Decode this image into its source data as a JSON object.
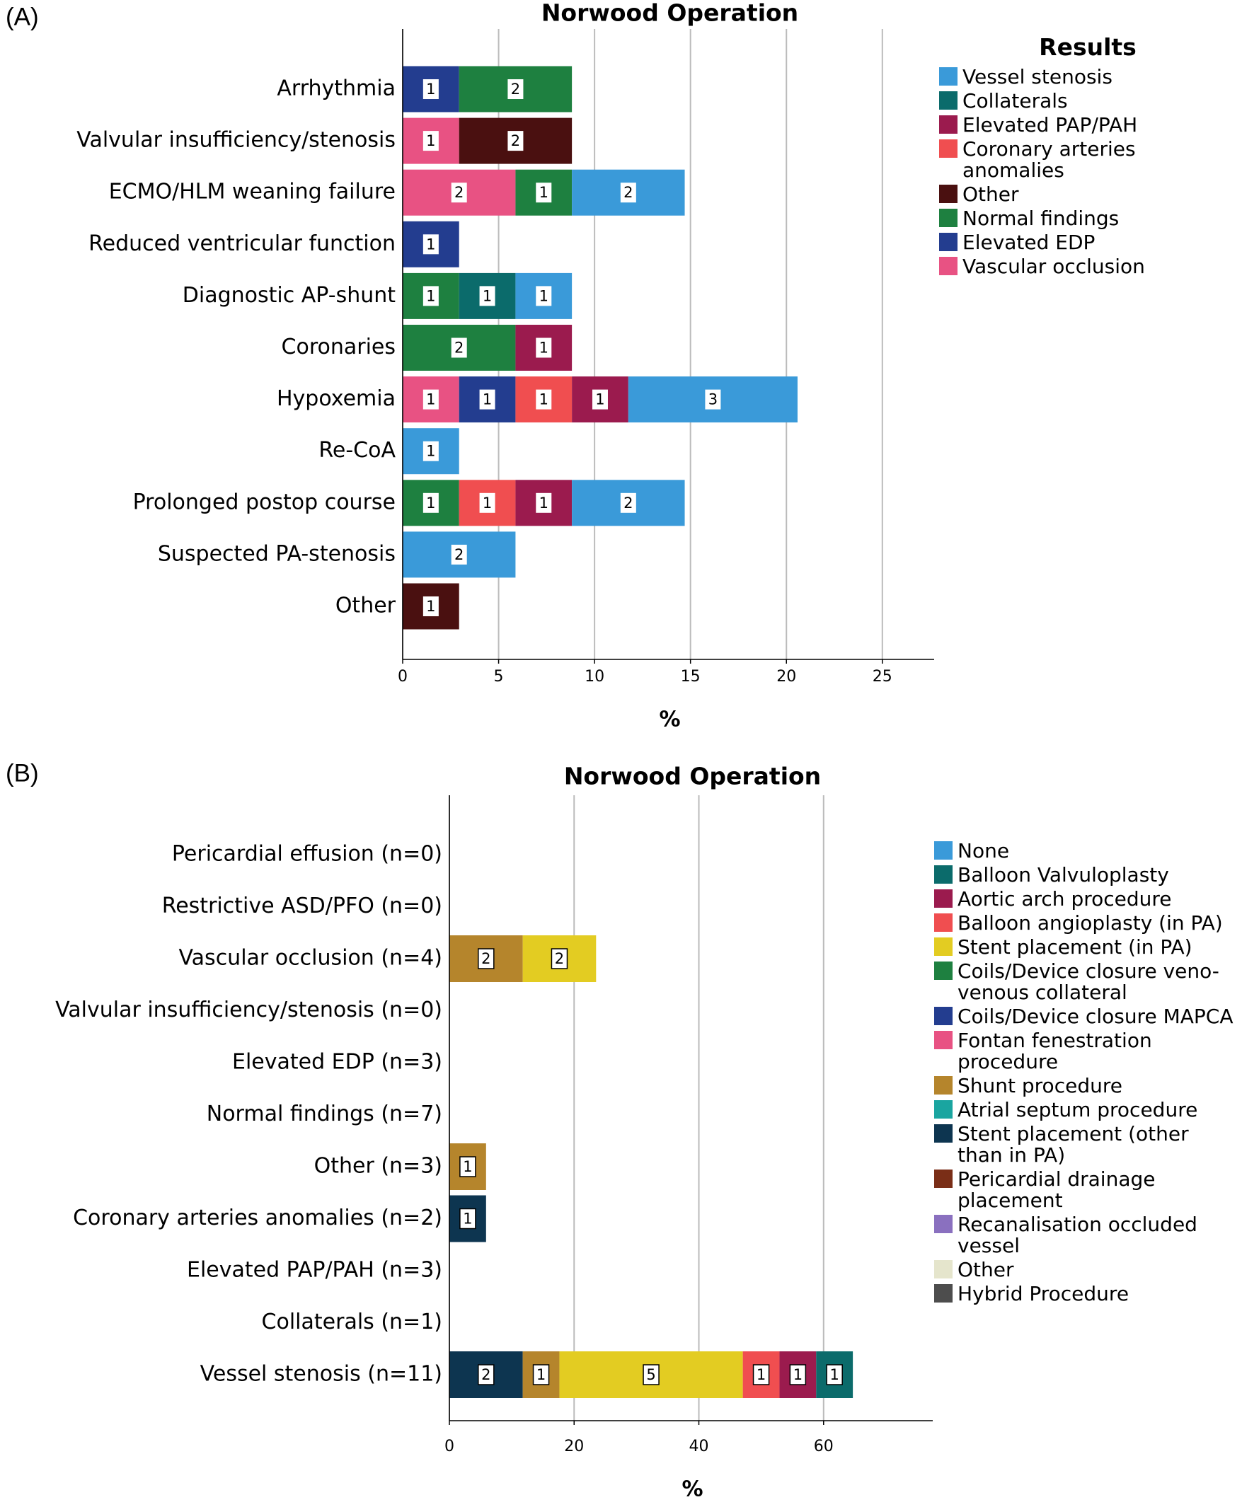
{
  "chart_data": [
    {
      "type": "bar",
      "orientation": "horizontal",
      "stacked": true,
      "panel_label": "(A)",
      "title": "Norwood Operation",
      "xlabel": "%",
      "legend_title": "Results",
      "legend_position": "right",
      "grid": true,
      "categories": [
        "Arrhythmia",
        "Valvular insufficiency/stenosis",
        "ECMO/HLM weaning failure",
        "Reduced ventricular function",
        "Diagnostic AP-shunt",
        "Coronaries",
        "Hypoxemia",
        "Re-CoA",
        "Prolonged postop course",
        "Suspected PA-stenosis",
        "Other"
      ],
      "xlim": [
        0,
        27.7
      ],
      "xticks": [
        0,
        5,
        10,
        15,
        20,
        25
      ],
      "series": [
        {
          "name": "Vessel stenosis",
          "color": "#3a9ad9",
          "values": [
            null,
            null,
            5.88,
            null,
            2.94,
            null,
            8.82,
            2.94,
            5.88,
            5.88,
            null
          ],
          "value_labels": [
            null,
            null,
            "2",
            null,
            "1",
            null,
            "3",
            "1",
            "2",
            "2",
            null
          ]
        },
        {
          "name": "Collaterals",
          "color": "#0b6b6b",
          "values": [
            null,
            null,
            null,
            null,
            2.94,
            null,
            null,
            null,
            null,
            null,
            null
          ],
          "value_labels": [
            null,
            null,
            null,
            null,
            "1",
            null,
            null,
            null,
            null,
            null,
            null
          ]
        },
        {
          "name": "Elevated PAP/PAH",
          "color": "#9b1b4e",
          "values": [
            null,
            null,
            null,
            null,
            null,
            2.94,
            2.94,
            null,
            2.94,
            null,
            null
          ],
          "value_labels": [
            null,
            null,
            null,
            null,
            null,
            "1",
            "1",
            null,
            "1",
            null,
            null
          ]
        },
        {
          "name": "Coronary arteries anomalies",
          "color": "#f04e50",
          "values": [
            null,
            null,
            null,
            null,
            null,
            null,
            2.94,
            null,
            2.94,
            null,
            null
          ],
          "value_labels": [
            null,
            null,
            null,
            null,
            null,
            null,
            "1",
            null,
            "1",
            null,
            null
          ]
        },
        {
          "name": "Other",
          "color": "#4a1010",
          "values": [
            null,
            5.88,
            null,
            null,
            null,
            null,
            null,
            null,
            null,
            null,
            2.94
          ],
          "value_labels": [
            null,
            "2",
            null,
            null,
            null,
            null,
            null,
            null,
            null,
            null,
            "1"
          ]
        },
        {
          "name": "Normal findings",
          "color": "#1e8040",
          "values": [
            5.88,
            null,
            2.94,
            null,
            2.94,
            5.88,
            null,
            null,
            2.94,
            null,
            null
          ],
          "value_labels": [
            "2",
            null,
            "1",
            null,
            "1",
            "2",
            null,
            null,
            "1",
            null,
            null
          ]
        },
        {
          "name": "Elevated EDP",
          "color": "#233d8f",
          "values": [
            2.94,
            null,
            null,
            2.94,
            null,
            null,
            2.94,
            null,
            null,
            null,
            null
          ],
          "value_labels": [
            "1",
            null,
            null,
            "1",
            null,
            null,
            "1",
            null,
            null,
            null,
            null
          ]
        },
        {
          "name": "Vascular occlusion",
          "color": "#e85283",
          "values": [
            null,
            2.94,
            5.88,
            null,
            null,
            null,
            2.94,
            null,
            null,
            null,
            null
          ],
          "value_labels": [
            null,
            "1",
            "2",
            null,
            null,
            null,
            "1",
            null,
            null,
            null,
            null
          ]
        }
      ]
    },
    {
      "type": "bar",
      "orientation": "horizontal",
      "stacked": true,
      "panel_label": "(B)",
      "title": "Norwood Operation",
      "xlabel": "%",
      "legend_position": "right",
      "grid": true,
      "value_label_color": "#000000",
      "categories": [
        "Pericardial effusion (n=0)",
        "Restrictive ASD/PFO (n=0)",
        "Vascular occlusion (n=4)",
        "Valvular insufficiency/stenosis (n=0)",
        "Elevated EDP (n=3)",
        "Normal findings (n=7)",
        "Other (n=3)",
        "Coronary arteries anomalies (n=2)",
        "Elevated PAP/PAH (n=3)",
        "Collaterals (n=1)",
        "Vessel stenosis (n=11)"
      ],
      "xlim": [
        0,
        77.5
      ],
      "xticks": [
        0,
        20,
        40,
        60
      ],
      "series": [
        {
          "name": "None",
          "color": "#3a9ad9",
          "values": [
            null,
            null,
            null,
            null,
            null,
            null,
            null,
            null,
            null,
            null,
            null
          ]
        },
        {
          "name": "Balloon Valvuloplasty",
          "color": "#0b6b6b",
          "values": [
            null,
            null,
            null,
            null,
            null,
            null,
            null,
            null,
            null,
            null,
            5.88
          ],
          "value_labels": [
            null,
            null,
            null,
            null,
            null,
            null,
            null,
            null,
            null,
            null,
            "1"
          ]
        },
        {
          "name": "Aortic arch procedure",
          "color": "#9b1b4e",
          "values": [
            null,
            null,
            null,
            null,
            null,
            null,
            null,
            null,
            null,
            null,
            5.88
          ],
          "value_labels": [
            null,
            null,
            null,
            null,
            null,
            null,
            null,
            null,
            null,
            null,
            "1"
          ]
        },
        {
          "name": "Balloon angioplasty (in PA)",
          "color": "#f04e50",
          "values": [
            null,
            null,
            null,
            null,
            null,
            null,
            null,
            null,
            null,
            null,
            5.88
          ],
          "value_labels": [
            null,
            null,
            null,
            null,
            null,
            null,
            null,
            null,
            null,
            null,
            "1"
          ]
        },
        {
          "name": "Stent placement (in PA)",
          "color": "#e3cc22",
          "values": [
            null,
            null,
            11.76,
            null,
            null,
            null,
            null,
            null,
            null,
            null,
            29.41
          ],
          "value_labels": [
            null,
            null,
            "2",
            null,
            null,
            null,
            null,
            null,
            null,
            null,
            "5"
          ]
        },
        {
          "name": "Coils/Device closure veno-venous collateral",
          "color": "#1e8040",
          "values": [
            null,
            null,
            null,
            null,
            null,
            null,
            null,
            null,
            null,
            null,
            null
          ]
        },
        {
          "name": "Coils/Device closure MAPCA",
          "color": "#233d8f",
          "values": [
            null,
            null,
            null,
            null,
            null,
            null,
            null,
            null,
            null,
            null,
            null
          ]
        },
        {
          "name": "Fontan fenestration procedure",
          "color": "#e85283",
          "values": [
            null,
            null,
            null,
            null,
            null,
            null,
            null,
            null,
            null,
            null,
            null
          ]
        },
        {
          "name": "Shunt procedure",
          "color": "#b5852c",
          "values": [
            null,
            null,
            11.76,
            null,
            null,
            null,
            5.88,
            null,
            null,
            null,
            5.88
          ],
          "value_labels": [
            null,
            null,
            "2",
            null,
            null,
            null,
            "1",
            null,
            null,
            null,
            "1"
          ]
        },
        {
          "name": "Atrial septum procedure",
          "color": "#1aa5a0",
          "values": [
            null,
            null,
            null,
            null,
            null,
            null,
            null,
            null,
            null,
            null,
            null
          ]
        },
        {
          "name": "Stent placement (other than in PA)",
          "color": "#0d3550",
          "values": [
            null,
            null,
            null,
            null,
            null,
            null,
            null,
            5.88,
            null,
            null,
            11.76
          ],
          "value_labels": [
            null,
            null,
            null,
            null,
            null,
            null,
            null,
            "1",
            null,
            null,
            "2"
          ]
        },
        {
          "name": "Pericardial drainage placement",
          "color": "#7a2e17",
          "values": [
            null,
            null,
            null,
            null,
            null,
            null,
            null,
            null,
            null,
            null,
            null
          ]
        },
        {
          "name": "Recanalisation occluded vessel",
          "color": "#8a70bf",
          "values": [
            null,
            null,
            null,
            null,
            null,
            null,
            null,
            null,
            null,
            null,
            null
          ]
        },
        {
          "name": "Other",
          "color": "#e5e5cc",
          "values": [
            null,
            null,
            null,
            null,
            null,
            null,
            null,
            null,
            null,
            null,
            null
          ]
        },
        {
          "name": "Hybrid Procedure",
          "color": "#4d4d4d",
          "values": [
            null,
            null,
            null,
            null,
            null,
            null,
            null,
            null,
            null,
            null,
            null
          ]
        }
      ]
    }
  ]
}
